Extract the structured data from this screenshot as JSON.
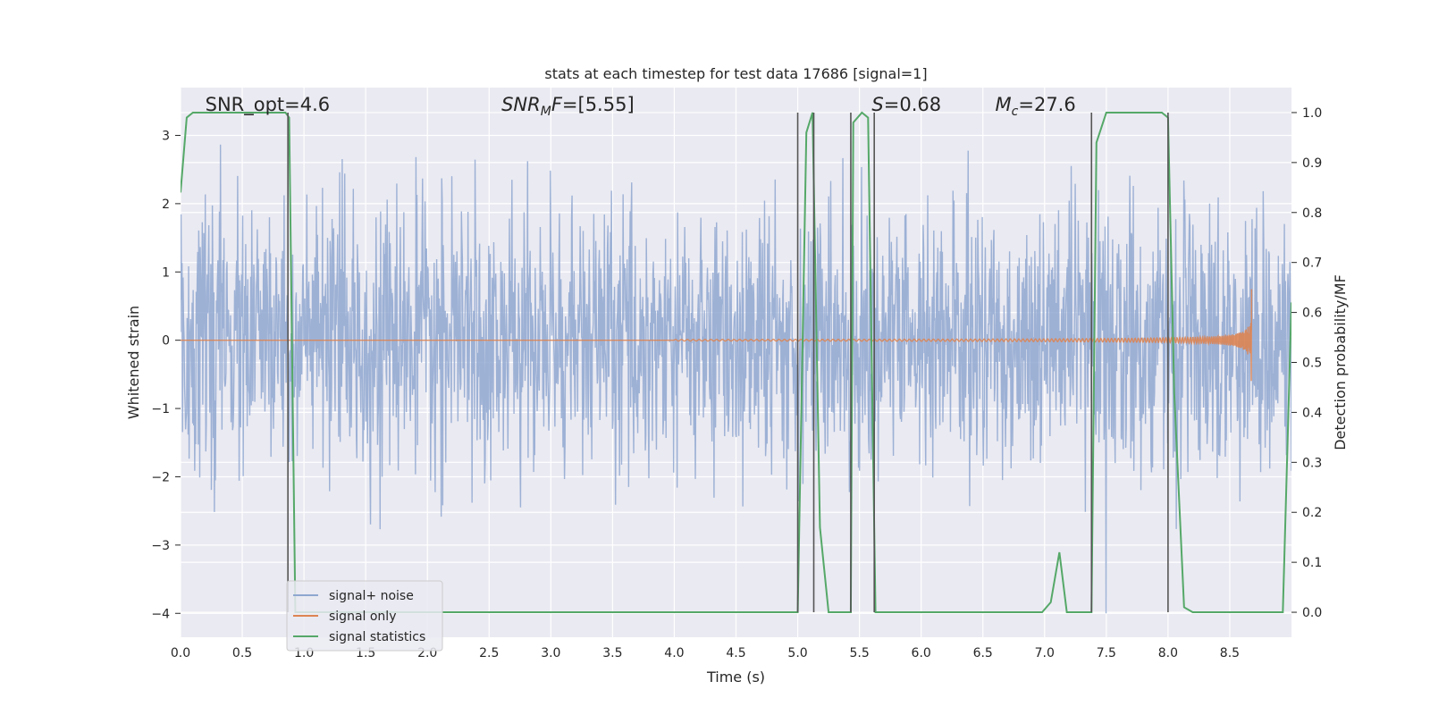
{
  "chart_data": {
    "type": "line",
    "title": "stats at each timestep for test data 17686 [signal=1]",
    "xlabel": "Time (s)",
    "ylabel_left": "Whitened strain",
    "ylabel_right": "Detection probability/MF",
    "xlim": [
      0.0,
      9.0
    ],
    "ylim_left": [
      -4.35,
      3.7
    ],
    "ylim_right": [
      -0.05,
      1.05
    ],
    "x_ticks": [
      "0.0",
      "0.5",
      "1.0",
      "1.5",
      "2.0",
      "2.5",
      "3.0",
      "3.5",
      "4.0",
      "4.5",
      "5.0",
      "5.5",
      "6.0",
      "6.5",
      "7.0",
      "7.5",
      "8.0",
      "8.5"
    ],
    "y_ticks_left": [
      "3",
      "2",
      "1",
      "0",
      "−1",
      "−2",
      "−3",
      "−4"
    ],
    "y_ticks_right": [
      "1.0",
      "0.9",
      "0.8",
      "0.7",
      "0.6",
      "0.5",
      "0.4",
      "0.3",
      "0.2",
      "0.1",
      "0.0"
    ],
    "grid": true,
    "legend_position": "bottom-left",
    "annotations": [
      {
        "prefix": "SNR_opt=4.6",
        "sub": "",
        "suffix": "",
        "at_x": 0.2
      },
      {
        "prefix": "SNR",
        "sub": "M",
        "suffix": "F=[5.55]",
        "at_x": 2.6
      },
      {
        "prefix": "S",
        "sub": "",
        "suffix": "=0.68",
        "at_x": 5.6
      },
      {
        "prefix": "M",
        "sub": "c",
        "suffix": "=27.6",
        "at_x": 6.6
      }
    ],
    "vertical_lines_x": [
      0.87,
      5.0,
      5.13,
      5.43,
      5.62,
      7.38,
      8.0
    ],
    "series": [
      {
        "name": "signal+ noise",
        "color": "#8fa7d0",
        "description_kind": "noise",
        "amplitude_envelope": [
          -2.4,
          2.5
        ],
        "n_points": 2200
      },
      {
        "name": "signal only",
        "color": "#dd8452",
        "chirp": {
          "start_x": 4.0,
          "end_x": 8.68,
          "max_amplitude": 1.0
        }
      },
      {
        "name": "signal statistics",
        "color": "#55a868",
        "axis": "right",
        "x": [
          0.0,
          0.05,
          0.1,
          0.85,
          0.88,
          0.93,
          1.0,
          4.98,
          5.0,
          5.07,
          5.12,
          5.18,
          5.25,
          5.43,
          5.45,
          5.52,
          5.57,
          5.63,
          5.65,
          5.72,
          6.98,
          7.05,
          7.12,
          7.18,
          7.38,
          7.42,
          7.5,
          7.95,
          8.0,
          8.05,
          8.13,
          8.2,
          8.93,
          9.0
        ],
        "y": [
          0.84,
          0.99,
          1.0,
          1.0,
          0.99,
          0.0,
          0.0,
          0.0,
          0.0,
          0.96,
          1.0,
          0.17,
          0.0,
          0.0,
          0.98,
          1.0,
          0.99,
          0.0,
          0.0,
          0.0,
          0.0,
          0.02,
          0.12,
          0.0,
          0.0,
          0.94,
          1.0,
          1.0,
          0.99,
          0.44,
          0.01,
          0.0,
          0.0,
          0.62
        ]
      }
    ]
  }
}
